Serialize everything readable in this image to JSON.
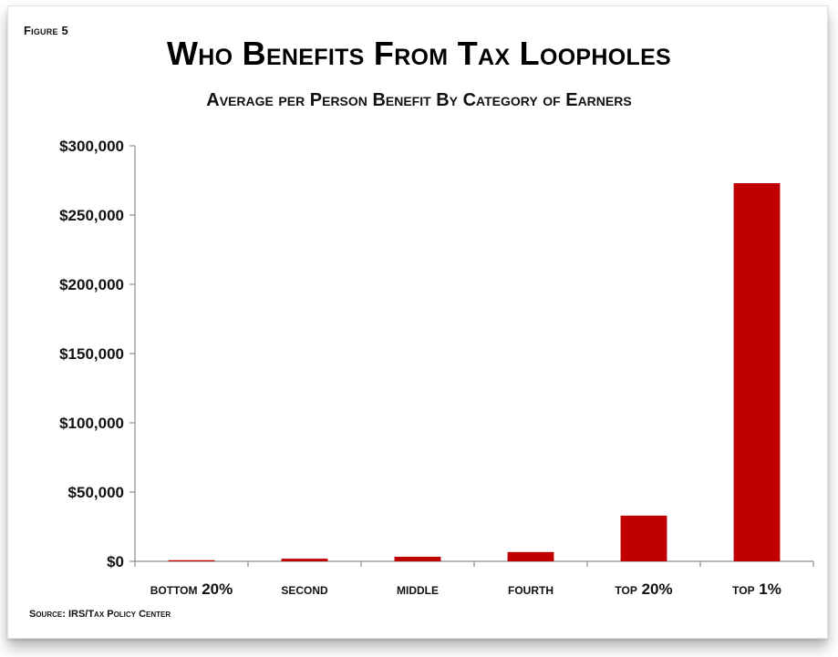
{
  "figure_label": "Figure 5",
  "source": "Source: IRS/Tax Policy Center",
  "colors": {
    "bar": "#c00000",
    "axis": "#8c8c8c"
  },
  "chart_data": {
    "type": "bar",
    "title": "Who Benefits From Tax Loopholes",
    "subtitle": "Average per Person Benefit By Category of Earners",
    "xlabel": "",
    "ylabel": "",
    "categories": [
      "bottom 20%",
      "second",
      "middle",
      "fourth",
      "top 20%",
      "top 1%"
    ],
    "values": [
      800,
      1900,
      3300,
      6700,
      33000,
      273000
    ],
    "ylim": [
      0,
      300000
    ],
    "yticks": [
      0,
      50000,
      100000,
      150000,
      200000,
      250000,
      300000
    ],
    "ytick_labels": [
      "$0",
      "$50,000",
      "$100,000",
      "$150,000",
      "$200,000",
      "$250,000",
      "$300,000"
    ],
    "grid": false,
    "legend": "none"
  }
}
